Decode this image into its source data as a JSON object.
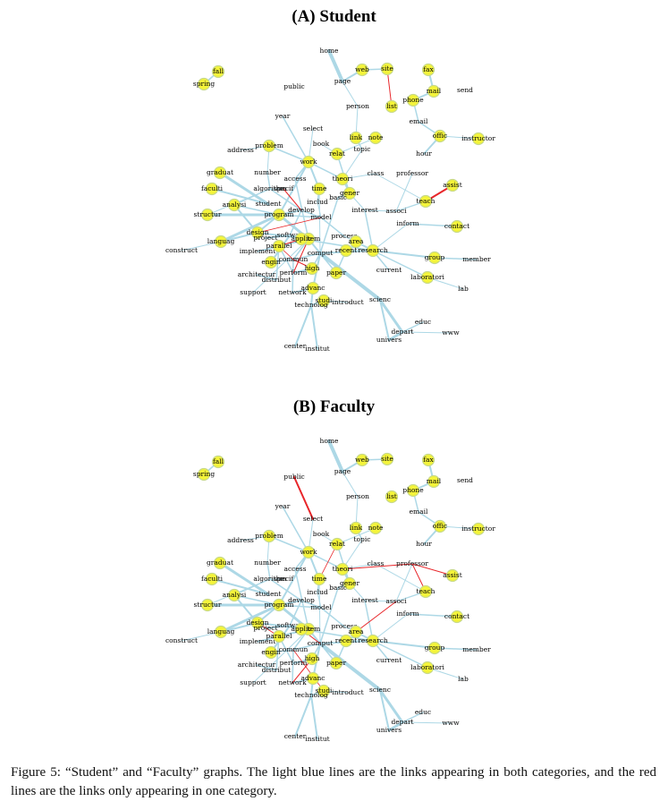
{
  "panels": [
    {
      "title": "(A) Student"
    },
    {
      "title": "(B) Faculty"
    }
  ],
  "caption": {
    "label": "Figure 5:",
    "text": "“Student” and “Faculty” graphs. The light blue lines are the links appearing in both categories, and the red lines are the links only appearing in one category."
  },
  "legend_colors": {
    "shared_links": "#add8e6",
    "unique_links": "#e8262a",
    "node_fill": "#f4f43a"
  },
  "nodes": [
    {
      "id": "home",
      "dot": false
    },
    {
      "id": "fall",
      "dot": true
    },
    {
      "id": "spring",
      "dot": true
    },
    {
      "id": "public",
      "dot": false
    },
    {
      "id": "page",
      "dot": false
    },
    {
      "id": "web",
      "dot": true
    },
    {
      "id": "site",
      "dot": true
    },
    {
      "id": "fax",
      "dot": true
    },
    {
      "id": "mail",
      "dot": true
    },
    {
      "id": "send",
      "dot": false
    },
    {
      "id": "phone",
      "dot": true
    },
    {
      "id": "person",
      "dot": false
    },
    {
      "id": "list",
      "dot": true
    },
    {
      "id": "email",
      "dot": false
    },
    {
      "id": "year",
      "dot": false
    },
    {
      "id": "select",
      "dot": false
    },
    {
      "id": "link",
      "dot": true
    },
    {
      "id": "note",
      "dot": true
    },
    {
      "id": "offic",
      "dot": true
    },
    {
      "id": "instructor",
      "dot": true
    },
    {
      "id": "address",
      "dot": false
    },
    {
      "id": "problem",
      "dot": true
    },
    {
      "id": "book",
      "dot": false
    },
    {
      "id": "relat",
      "dot": true
    },
    {
      "id": "topic",
      "dot": false
    },
    {
      "id": "hour",
      "dot": false
    },
    {
      "id": "work",
      "dot": true
    },
    {
      "id": "graduat",
      "dot": true
    },
    {
      "id": "number",
      "dot": false
    },
    {
      "id": "access",
      "dot": false
    },
    {
      "id": "theori",
      "dot": true
    },
    {
      "id": "class",
      "dot": false
    },
    {
      "id": "professor",
      "dot": false
    },
    {
      "id": "assist",
      "dot": true
    },
    {
      "id": "faculti",
      "dot": true
    },
    {
      "id": "algorithm",
      "dot": false
    },
    {
      "id": "specif",
      "dot": false
    },
    {
      "id": "time",
      "dot": true
    },
    {
      "id": "gener",
      "dot": true
    },
    {
      "id": "basic",
      "dot": false
    },
    {
      "id": "teach",
      "dot": true
    },
    {
      "id": "analysi",
      "dot": true
    },
    {
      "id": "student",
      "dot": false
    },
    {
      "id": "includ",
      "dot": false
    },
    {
      "id": "interest",
      "dot": false
    },
    {
      "id": "associ",
      "dot": false
    },
    {
      "id": "structur",
      "dot": true
    },
    {
      "id": "develop",
      "dot": false
    },
    {
      "id": "design",
      "dot": true
    },
    {
      "id": "program",
      "dot": true
    },
    {
      "id": "model",
      "dot": false
    },
    {
      "id": "inform",
      "dot": false
    },
    {
      "id": "contact",
      "dot": true
    },
    {
      "id": "languag",
      "dot": true
    },
    {
      "id": "project",
      "dot": false
    },
    {
      "id": "softwar",
      "dot": false
    },
    {
      "id": "system",
      "dot": true
    },
    {
      "id": "process",
      "dot": false
    },
    {
      "id": "area",
      "dot": true
    },
    {
      "id": "construct",
      "dot": false
    },
    {
      "id": "implement",
      "dot": false
    },
    {
      "id": "parallel",
      "dot": true
    },
    {
      "id": "applic",
      "dot": true
    },
    {
      "id": "comput",
      "dot": false
    },
    {
      "id": "recent",
      "dot": true
    },
    {
      "id": "research",
      "dot": true
    },
    {
      "id": "group",
      "dot": true
    },
    {
      "id": "member",
      "dot": false
    },
    {
      "id": "engin",
      "dot": true
    },
    {
      "id": "commun",
      "dot": false
    },
    {
      "id": "current",
      "dot": false
    },
    {
      "id": "architectur",
      "dot": false
    },
    {
      "id": "distribut",
      "dot": false
    },
    {
      "id": "perform",
      "dot": false
    },
    {
      "id": "high",
      "dot": true
    },
    {
      "id": "paper",
      "dot": true
    },
    {
      "id": "laboratori",
      "dot": true
    },
    {
      "id": "support",
      "dot": false
    },
    {
      "id": "network",
      "dot": false
    },
    {
      "id": "advanc",
      "dot": true
    },
    {
      "id": "lab",
      "dot": false
    },
    {
      "id": "studi",
      "dot": true
    },
    {
      "id": "technolog",
      "dot": false
    },
    {
      "id": "introduct",
      "dot": false
    },
    {
      "id": "scienc",
      "dot": false
    },
    {
      "id": "educ",
      "dot": false
    },
    {
      "id": "depart",
      "dot": false
    },
    {
      "id": "www",
      "dot": false
    },
    {
      "id": "univers",
      "dot": false
    },
    {
      "id": "center",
      "dot": false
    },
    {
      "id": "institut",
      "dot": false
    }
  ],
  "edges_shared": [
    [
      "home",
      "page",
      4
    ],
    [
      "fall",
      "spring",
      1.5
    ],
    [
      "page",
      "web",
      2
    ],
    [
      "web",
      "site",
      1.5
    ],
    [
      "fax",
      "mail",
      2
    ],
    [
      "mail",
      "phone",
      2
    ],
    [
      "phone",
      "email",
      1.5
    ],
    [
      "email",
      "offic",
      1.5
    ],
    [
      "offic",
      "hour",
      2
    ],
    [
      "offic",
      "instructor",
      1
    ],
    [
      "page",
      "person",
      1
    ],
    [
      "person",
      "link",
      1
    ],
    [
      "link",
      "topic",
      1.5
    ],
    [
      "note",
      "relat",
      1
    ],
    [
      "year",
      "work",
      1.5
    ],
    [
      "select",
      "work",
      1
    ],
    [
      "book",
      "relat",
      1
    ],
    [
      "problem",
      "work",
      1.5
    ],
    [
      "problem",
      "number",
      1
    ],
    [
      "address",
      "problem",
      1
    ],
    [
      "work",
      "time",
      2
    ],
    [
      "work",
      "theori",
      1.5
    ],
    [
      "work",
      "access",
      1.5
    ],
    [
      "work",
      "program",
      2
    ],
    [
      "graduat",
      "student",
      3
    ],
    [
      "faculti",
      "student",
      2
    ],
    [
      "number",
      "algorithm",
      1.5
    ],
    [
      "algorithm",
      "specif",
      1
    ],
    [
      "algorithm",
      "develop",
      1.5
    ],
    [
      "analysi",
      "design",
      2
    ],
    [
      "structur",
      "program",
      3
    ],
    [
      "design",
      "program",
      2
    ],
    [
      "program",
      "develop",
      2
    ],
    [
      "develop",
      "model",
      1.5
    ],
    [
      "languag",
      "program",
      3
    ],
    [
      "languag",
      "design",
      2
    ],
    [
      "program",
      "system",
      3
    ],
    [
      "project",
      "softwar",
      2
    ],
    [
      "softwar",
      "system",
      2
    ],
    [
      "system",
      "applic",
      3
    ],
    [
      "system",
      "comput",
      2
    ],
    [
      "system",
      "parallel",
      2
    ],
    [
      "parallel",
      "distribut",
      1.5
    ],
    [
      "parallel",
      "perform",
      1.5
    ],
    [
      "implement",
      "system",
      1.5
    ],
    [
      "engin",
      "softwar",
      2
    ],
    [
      "commun",
      "network",
      1.5
    ],
    [
      "comput",
      "scienc",
      4
    ],
    [
      "comput",
      "research",
      2
    ],
    [
      "research",
      "area",
      2
    ],
    [
      "research",
      "recent",
      1.5
    ],
    [
      "research",
      "interest",
      1.5
    ],
    [
      "research",
      "group",
      2
    ],
    [
      "group",
      "member",
      1.5
    ],
    [
      "research",
      "laboratori",
      1.5
    ],
    [
      "research",
      "current",
      1.5
    ],
    [
      "interest",
      "associ",
      1
    ],
    [
      "associ",
      "teach",
      1.2
    ],
    [
      "teach",
      "class",
      1
    ],
    [
      "gener",
      "basic",
      1.5
    ],
    [
      "gener",
      "theori",
      1.5
    ],
    [
      "time",
      "includ",
      1.5
    ],
    [
      "includ",
      "model",
      1
    ],
    [
      "model",
      "process",
      1.5
    ],
    [
      "process",
      "area",
      1
    ],
    [
      "inform",
      "contact",
      1.5
    ],
    [
      "inform",
      "research",
      1
    ],
    [
      "high",
      "perform",
      2
    ],
    [
      "high",
      "comput",
      1.5
    ],
    [
      "paper",
      "comput",
      1.5
    ],
    [
      "advanc",
      "technolog",
      2
    ],
    [
      "technolog",
      "studi",
      1.5
    ],
    [
      "studi",
      "introduct",
      1
    ],
    [
      "technolog",
      "center",
      2
    ],
    [
      "technolog",
      "institut",
      2
    ],
    [
      "scienc",
      "depart",
      3
    ],
    [
      "depart",
      "univers",
      3
    ],
    [
      "depart",
      "educ",
      1.5
    ],
    [
      "depart",
      "www",
      1
    ],
    [
      "scienc",
      "univers",
      2
    ],
    [
      "architectur",
      "distribut",
      1.5
    ],
    [
      "support",
      "system",
      1
    ],
    [
      "network",
      "advanc",
      1.5
    ],
    [
      "laboratori",
      "lab",
      1
    ],
    [
      "theori",
      "class",
      1
    ],
    [
      "topic",
      "theori",
      1
    ],
    [
      "professor",
      "associ",
      1
    ],
    [
      "relat",
      "gener",
      1.5
    ],
    [
      "access",
      "system",
      1.5
    ],
    [
      "program",
      "model",
      1.5
    ],
    [
      "applic",
      "research",
      1.5
    ],
    [
      "comput",
      "advanc",
      2
    ],
    [
      "algorithm",
      "analysi",
      1
    ],
    [
      "structur",
      "algorithm",
      1
    ],
    [
      "analysi",
      "program",
      1.5
    ],
    [
      "system",
      "commun",
      1.5
    ],
    [
      "comput",
      "commun",
      1.5
    ],
    [
      "implement",
      "parallel",
      1.5
    ],
    [
      "engin",
      "commun",
      1.5
    ],
    [
      "recent",
      "paper",
      1.5
    ],
    [
      "design",
      "system",
      2
    ],
    [
      "gener",
      "interest",
      1
    ],
    [
      "basic",
      "comput",
      1.5
    ],
    [
      "time",
      "comput",
      1
    ],
    [
      "develop",
      "softwar",
      1.5
    ],
    [
      "construct",
      "languag",
      1
    ]
  ],
  "edges_only_a": [
    [
      "site",
      "list",
      1
    ],
    [
      "teach",
      "assist",
      2
    ],
    [
      "applic",
      "parallel",
      1
    ],
    [
      "high",
      "commun",
      1
    ],
    [
      "perform",
      "system",
      1
    ],
    [
      "commun",
      "parallel",
      0.8
    ],
    [
      "specif",
      "develop",
      1
    ],
    [
      "design",
      "model",
      0.8
    ]
  ],
  "edges_only_b": [
    [
      "public",
      "select",
      2
    ],
    [
      "theori",
      "professor",
      1
    ],
    [
      "professor",
      "assist",
      1
    ],
    [
      "professor",
      "teach",
      1
    ],
    [
      "associ",
      "area",
      1
    ],
    [
      "applic",
      "comput",
      1
    ],
    [
      "design",
      "parallel",
      0.8
    ],
    [
      "high",
      "network",
      1
    ],
    [
      "commun",
      "studi",
      0.8
    ],
    [
      "relat",
      "time",
      0.8
    ]
  ]
}
